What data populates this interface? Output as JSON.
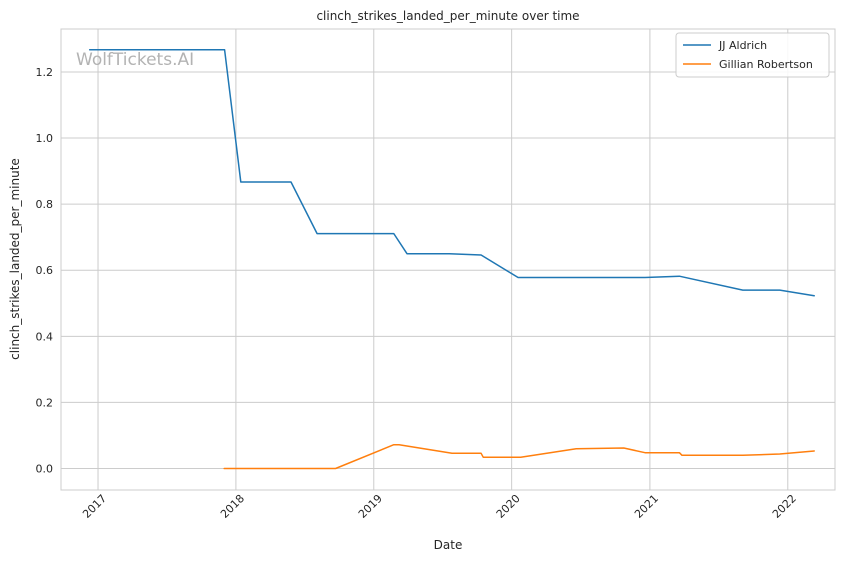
{
  "chart_data": {
    "type": "line",
    "title": "clinch_strikes_landed_per_minute over time",
    "xlabel": "Date",
    "ylabel": "clinch_strikes_landed_per_minute",
    "x_tick_labels": [
      "2017",
      "2018",
      "2019",
      "2020",
      "2021",
      "2022"
    ],
    "x_range": [
      "2016-09-25",
      "2022-05-06"
    ],
    "ylim": [
      -0.065,
      1.33
    ],
    "y_ticks": [
      0.0,
      0.2,
      0.4,
      0.6,
      0.8,
      1.0,
      1.2
    ],
    "y_tick_labels": [
      "0.0",
      "0.2",
      "0.4",
      "0.6",
      "0.8",
      "1.0",
      "1.2"
    ],
    "grid": true,
    "legend_position": "top-right",
    "watermark": "WolfTickets.AI",
    "series": [
      {
        "name": "JJ Aldrich",
        "color": "#1f77b4",
        "x": [
          "2016-12-10",
          "2017-12-02",
          "2018-01-14",
          "2018-05-27",
          "2018-08-04",
          "2019-02-23",
          "2019-03-30",
          "2019-07-20",
          "2019-10-12",
          "2020-01-18",
          "2020-12-19",
          "2021-03-20",
          "2021-09-04",
          "2021-12-11",
          "2022-03-12"
        ],
        "y": [
          1.267,
          1.267,
          0.867,
          0.867,
          0.711,
          0.711,
          0.65,
          0.65,
          0.646,
          0.578,
          0.578,
          0.582,
          0.54,
          0.54,
          0.523
        ]
      },
      {
        "name": "Gillian Robertson",
        "color": "#ff7f0e",
        "x": [
          "2017-12-01",
          "2018-09-22",
          "2019-02-23",
          "2019-03-09",
          "2019-07-27",
          "2019-10-12",
          "2019-10-18",
          "2020-01-25",
          "2020-06-20",
          "2020-10-24",
          "2020-12-19",
          "2021-03-20",
          "2021-03-27",
          "2021-09-04",
          "2021-12-11",
          "2022-03-12"
        ],
        "y": [
          0.0,
          0.0,
          0.072,
          0.072,
          0.046,
          0.046,
          0.034,
          0.034,
          0.06,
          0.062,
          0.048,
          0.048,
          0.04,
          0.04,
          0.044,
          0.053
        ]
      }
    ]
  }
}
